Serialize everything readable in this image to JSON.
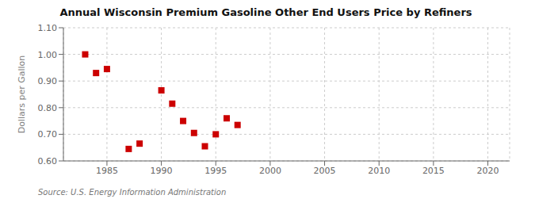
{
  "chart_data": {
    "type": "scatter",
    "title": "Annual Wisconsin Premium Gasoline Other End Users Price by Refiners",
    "ylabel": "Dollars per Gallon",
    "annotations": [
      "Source: U.S. Energy Information Administration"
    ],
    "x": [
      1983,
      1984,
      1985,
      1987,
      1988,
      1990,
      1991,
      1992,
      1993,
      1994,
      1995,
      1996,
      1997
    ],
    "values": [
      1.0,
      0.93,
      0.945,
      0.645,
      0.665,
      0.865,
      0.815,
      0.75,
      0.705,
      0.655,
      0.7,
      0.76,
      0.735
    ],
    "color": "#cc0000",
    "marker": "square",
    "xlim": [
      1981,
      2022
    ],
    "ylim": [
      0.6,
      1.1
    ],
    "xticks": [
      1985,
      1990,
      1995,
      2000,
      2005,
      2010,
      2015,
      2020
    ],
    "yticks": [
      {
        "value": 0.6,
        "label": "0.60"
      },
      {
        "value": 0.7,
        "label": "0.70"
      },
      {
        "value": 0.8,
        "label": "0.80"
      },
      {
        "value": 0.9,
        "label": "0.90"
      },
      {
        "value": 1.0,
        "label": "1.00"
      },
      {
        "value": 1.1,
        "label": "1.10"
      }
    ],
    "grid": true
  }
}
